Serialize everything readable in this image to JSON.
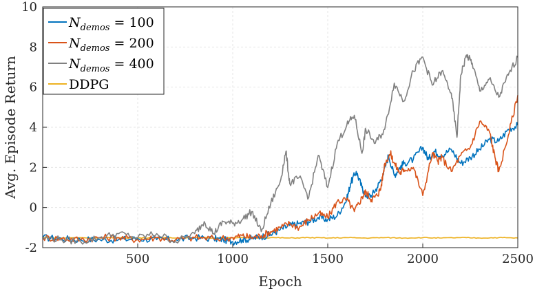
{
  "chart_data": {
    "type": "line",
    "title": "",
    "xlabel": "Epoch",
    "ylabel": "Avg. Episode Return",
    "xlim": [
      0,
      2500
    ],
    "ylim": [
      -2,
      10
    ],
    "xticks": [
      500,
      1000,
      1500,
      2000,
      2500
    ],
    "xtick_labels": [
      "500",
      "1000",
      "1500",
      "2000",
      "2500"
    ],
    "yticks": [
      -2,
      0,
      2,
      4,
      6,
      8,
      10
    ],
    "ytick_labels": [
      "-2",
      "0",
      "2",
      "4",
      "6",
      "8",
      "10"
    ],
    "grid": true,
    "legend_position": "top-left",
    "series": [
      {
        "name": "N_demos = 100",
        "legend_main": "N",
        "legend_sub": "demos",
        "legend_rest": " = 100",
        "color": "#0072BD",
        "x": [
          0,
          100,
          200,
          300,
          400,
          500,
          600,
          700,
          800,
          900,
          950,
          1000,
          1050,
          1100,
          1150,
          1200,
          1250,
          1300,
          1350,
          1400,
          1450,
          1500,
          1550,
          1600,
          1620,
          1650,
          1680,
          1700,
          1730,
          1760,
          1790,
          1820,
          1850,
          1880,
          1900,
          1950,
          2000,
          2030,
          2060,
          2100,
          2150,
          2200,
          2250,
          2300,
          2350,
          2400,
          2450,
          2500
        ],
        "y": [
          -1.5,
          -1.55,
          -1.6,
          -1.6,
          -1.6,
          -1.55,
          -1.6,
          -1.6,
          -1.5,
          -1.55,
          -1.6,
          -1.7,
          -1.6,
          -1.55,
          -1.45,
          -1.35,
          -1.1,
          -0.9,
          -0.8,
          -0.7,
          -0.5,
          -0.6,
          -0.4,
          0.4,
          1.2,
          1.8,
          1.0,
          0.6,
          0.6,
          1.0,
          1.6,
          2.6,
          1.6,
          2.0,
          2.2,
          2.4,
          3.0,
          2.4,
          2.8,
          2.6,
          2.9,
          2.2,
          2.5,
          2.9,
          3.4,
          3.3,
          3.9,
          4.1
        ]
      },
      {
        "name": "N_demos = 200",
        "legend_main": "N",
        "legend_sub": "demos",
        "legend_rest": " = 200",
        "color": "#D95319",
        "x": [
          0,
          100,
          200,
          300,
          400,
          500,
          600,
          700,
          800,
          900,
          1000,
          1050,
          1100,
          1150,
          1200,
          1250,
          1300,
          1350,
          1400,
          1450,
          1500,
          1550,
          1600,
          1640,
          1680,
          1700,
          1730,
          1760,
          1780,
          1800,
          1830,
          1850,
          1880,
          1900,
          1950,
          2000,
          2050,
          2080,
          2100,
          2150,
          2200,
          2250,
          2300,
          2350,
          2380,
          2400,
          2450,
          2500
        ],
        "y": [
          -1.5,
          -1.55,
          -1.6,
          -1.5,
          -1.5,
          -1.6,
          -1.5,
          -1.6,
          -1.5,
          -1.55,
          -1.5,
          -1.4,
          -1.5,
          -1.4,
          -1.2,
          -1.0,
          -0.8,
          -1.0,
          -0.6,
          -0.3,
          -0.5,
          0.3,
          0.4,
          -0.2,
          0.5,
          0.8,
          0.4,
          0.6,
          1.0,
          2.2,
          2.7,
          2.2,
          1.7,
          1.9,
          2.0,
          0.6,
          2.7,
          2.3,
          2.5,
          1.8,
          2.6,
          3.0,
          4.3,
          3.8,
          2.5,
          1.8,
          3.6,
          5.6
        ]
      },
      {
        "name": "N_demos = 400",
        "legend_main": "N",
        "legend_sub": "demos",
        "legend_rest": " = 400",
        "color": "#808080",
        "x": [
          0,
          100,
          200,
          300,
          400,
          500,
          600,
          700,
          800,
          850,
          900,
          950,
          1000,
          1050,
          1100,
          1150,
          1200,
          1250,
          1280,
          1300,
          1350,
          1400,
          1450,
          1500,
          1550,
          1600,
          1640,
          1680,
          1700,
          1750,
          1800,
          1850,
          1900,
          1950,
          2000,
          2050,
          2100,
          2150,
          2180,
          2200,
          2230,
          2260,
          2300,
          2350,
          2400,
          2450,
          2500
        ],
        "y": [
          -1.5,
          -1.6,
          -1.7,
          -1.5,
          -1.3,
          -1.5,
          -1.3,
          -1.7,
          -1.3,
          -0.7,
          -1.3,
          -0.7,
          -0.8,
          -0.6,
          -0.2,
          -1.2,
          0.2,
          1.3,
          2.8,
          1.2,
          1.5,
          0.5,
          2.6,
          1.0,
          3.2,
          4.1,
          4.6,
          2.7,
          3.9,
          3.2,
          3.9,
          6.2,
          5.3,
          6.8,
          7.5,
          6.1,
          6.8,
          5.7,
          3.5,
          6.6,
          7.6,
          7.2,
          5.8,
          6.4,
          5.5,
          6.6,
          7.5
        ]
      },
      {
        "name": "DDPG",
        "legend_main": "DDPG",
        "legend_sub": "",
        "legend_rest": "",
        "color": "#EDB120",
        "x": [
          0,
          100,
          200,
          300,
          400,
          500,
          600,
          700,
          800,
          900,
          1000,
          1100,
          1200,
          1300,
          1400,
          1500,
          1600,
          1700,
          1800,
          1900,
          2000,
          2100,
          2200,
          2300,
          2400,
          2500
        ],
        "y": [
          -1.5,
          -1.52,
          -1.5,
          -1.52,
          -1.5,
          -1.52,
          -1.5,
          -1.52,
          -1.5,
          -1.52,
          -1.5,
          -1.52,
          -1.5,
          -1.52,
          -1.5,
          -1.52,
          -1.5,
          -1.52,
          -1.5,
          -1.52,
          -1.5,
          -1.52,
          -1.5,
          -1.52,
          -1.5,
          -1.52
        ]
      }
    ]
  }
}
